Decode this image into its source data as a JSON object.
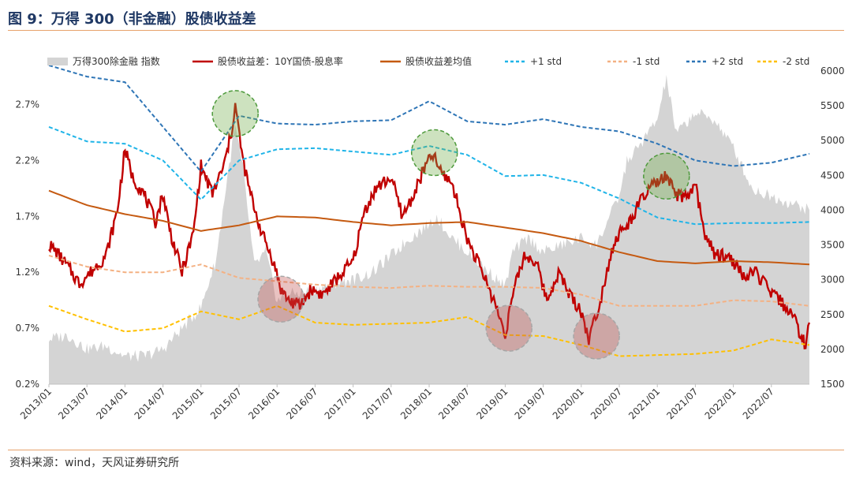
{
  "header": {
    "title": "图 9：万得 300（非金融）股债收益差"
  },
  "footer": {
    "source": "资料来源：wind，天风证券研究所"
  },
  "chart_data": {
    "type": "line",
    "x_ticks": [
      "2013/01",
      "2013/07",
      "2014/01",
      "2014/07",
      "2015/01",
      "2015/07",
      "2016/01",
      "2016/07",
      "2017/01",
      "2017/07",
      "2018/01",
      "2018/07",
      "2019/01",
      "2019/07",
      "2020/01",
      "2020/07",
      "2021/01",
      "2021/07",
      "2022/01",
      "2022/07"
    ],
    "y_left": {
      "ticks": [
        "0.2%",
        "0.7%",
        "1.2%",
        "1.7%",
        "2.2%",
        "2.7%"
      ],
      "range": [
        0.2,
        3.0
      ]
    },
    "y_right": {
      "ticks": [
        "1500",
        "2000",
        "2500",
        "3000",
        "3500",
        "4000",
        "4500",
        "5000",
        "5500",
        "6000"
      ],
      "range": [
        1500,
        6000
      ]
    },
    "legend": [
      {
        "name": "万得300除金融 指数",
        "color": "#d4d4d4",
        "style": "area"
      },
      {
        "name": "股债收益差：10Y国债-股息率",
        "color": "#c00000",
        "style": "solid"
      },
      {
        "name": "股债收益差均值",
        "color": "#c55a11",
        "style": "solid"
      },
      {
        "name": "+1 std",
        "color": "#1fb4e8",
        "style": "dashed"
      },
      {
        "name": "-1 std",
        "color": "#f4b183",
        "style": "dashed"
      },
      {
        "name": "+2 std",
        "color": "#2e75b6",
        "style": "dashed"
      },
      {
        "name": "-2 std",
        "color": "#ffc000",
        "style": "dashed"
      }
    ],
    "series": [
      {
        "name": "万得300除金融 指数",
        "axis": "right",
        "x": [
          2013.0,
          2013.25,
          2013.5,
          2013.75,
          2014.0,
          2014.25,
          2014.5,
          2014.75,
          2015.0,
          2015.2,
          2015.35,
          2015.45,
          2015.55,
          2015.7,
          2015.85,
          2016.0,
          2016.2,
          2016.5,
          2016.75,
          2017.0,
          2017.25,
          2017.5,
          2017.75,
          2018.0,
          2018.1,
          2018.3,
          2018.5,
          2018.75,
          2019.0,
          2019.1,
          2019.3,
          2019.5,
          2019.75,
          2020.0,
          2020.2,
          2020.5,
          2020.6,
          2020.75,
          2021.0,
          2021.12,
          2021.25,
          2021.5,
          2021.75,
          2022.0,
          2022.25,
          2022.5,
          2022.75,
          2023.0
        ],
        "values": [
          2150,
          2200,
          2000,
          2050,
          1900,
          1900,
          2000,
          2300,
          2600,
          3300,
          4500,
          5200,
          4600,
          3200,
          3400,
          2700,
          2800,
          2850,
          2950,
          3000,
          3100,
          3350,
          3600,
          3800,
          3900,
          3600,
          3400,
          3150,
          2900,
          3400,
          3600,
          3400,
          3500,
          3600,
          3500,
          4200,
          4700,
          4900,
          5300,
          5900,
          5100,
          5400,
          5300,
          4900,
          4300,
          4200,
          4100,
          4000
        ]
      },
      {
        "name": "股债收益差：10Y国债-股息率",
        "axis": "left",
        "x": [
          2013.0,
          2013.1,
          2013.25,
          2013.4,
          2013.55,
          2013.75,
          2013.9,
          2014.0,
          2014.1,
          2014.25,
          2014.4,
          2014.5,
          2014.6,
          2014.75,
          2014.9,
          2015.0,
          2015.15,
          2015.3,
          2015.4,
          2015.45,
          2015.55,
          2015.65,
          2015.8,
          2015.95,
          2016.05,
          2016.15,
          2016.3,
          2016.45,
          2016.6,
          2016.8,
          2017.0,
          2017.15,
          2017.3,
          2017.5,
          2017.65,
          2017.8,
          2017.95,
          2018.05,
          2018.15,
          2018.3,
          2018.5,
          2018.7,
          2018.85,
          2019.0,
          2019.1,
          2019.25,
          2019.4,
          2019.55,
          2019.7,
          2019.85,
          2020.0,
          2020.1,
          2020.25,
          2020.4,
          2020.5,
          2020.6,
          2020.75,
          2020.9,
          2021.0,
          2021.1,
          2021.25,
          2021.4,
          2021.5,
          2021.6,
          2021.75,
          2021.9,
          2022.0,
          2022.15,
          2022.3,
          2022.45,
          2022.6,
          2022.75,
          2022.85,
          2022.95,
          2023.0
        ],
        "values": [
          1.45,
          1.38,
          1.25,
          1.1,
          1.2,
          1.35,
          1.75,
          2.3,
          2.05,
          1.9,
          1.65,
          1.9,
          1.55,
          1.2,
          1.55,
          2.15,
          1.9,
          2.15,
          2.45,
          2.7,
          2.2,
          1.9,
          1.55,
          1.3,
          1.05,
          0.95,
          0.9,
          1.05,
          1.0,
          1.15,
          1.3,
          1.75,
          1.95,
          2.05,
          1.7,
          1.9,
          2.15,
          2.25,
          2.1,
          2.0,
          1.5,
          1.2,
          0.95,
          0.65,
          1.0,
          1.35,
          1.3,
          0.95,
          1.2,
          1.0,
          0.85,
          0.6,
          0.95,
          1.4,
          1.55,
          1.6,
          1.8,
          1.95,
          2.0,
          2.05,
          1.9,
          1.85,
          2.0,
          1.6,
          1.35,
          1.35,
          1.3,
          1.15,
          1.2,
          1.05,
          0.95,
          0.85,
          0.7,
          0.55,
          0.75
        ]
      },
      {
        "name": "股债收益差均值",
        "axis": "left",
        "x": [
          2013.0,
          2013.5,
          2014.0,
          2014.5,
          2015.0,
          2015.5,
          2016.0,
          2016.5,
          2017.0,
          2017.5,
          2018.0,
          2018.5,
          2019.0,
          2019.5,
          2020.0,
          2020.5,
          2021.0,
          2021.5,
          2022.0,
          2022.5,
          2023.0
        ],
        "values": [
          1.93,
          1.8,
          1.72,
          1.66,
          1.57,
          1.62,
          1.7,
          1.69,
          1.65,
          1.62,
          1.64,
          1.65,
          1.6,
          1.55,
          1.48,
          1.38,
          1.3,
          1.28,
          1.3,
          1.29,
          1.27
        ]
      },
      {
        "name": "+1 std",
        "axis": "left",
        "x": [
          2013.0,
          2013.5,
          2014.0,
          2014.5,
          2015.0,
          2015.5,
          2016.0,
          2016.5,
          2017.0,
          2017.5,
          2018.0,
          2018.5,
          2019.0,
          2019.5,
          2020.0,
          2020.5,
          2021.0,
          2021.5,
          2022.0,
          2022.5,
          2023.0
        ],
        "values": [
          2.5,
          2.37,
          2.35,
          2.2,
          1.85,
          2.2,
          2.3,
          2.31,
          2.28,
          2.25,
          2.33,
          2.25,
          2.06,
          2.07,
          2.0,
          1.86,
          1.69,
          1.63,
          1.64,
          1.64,
          1.65
        ]
      },
      {
        "name": "-1 std",
        "axis": "left",
        "x": [
          2013.0,
          2013.5,
          2014.0,
          2014.5,
          2015.0,
          2015.5,
          2016.0,
          2016.5,
          2017.0,
          2017.5,
          2018.0,
          2018.5,
          2019.0,
          2019.5,
          2020.0,
          2020.5,
          2021.0,
          2021.5,
          2022.0,
          2022.5,
          2023.0
        ],
        "values": [
          1.35,
          1.25,
          1.2,
          1.2,
          1.27,
          1.15,
          1.12,
          1.09,
          1.07,
          1.06,
          1.08,
          1.07,
          1.07,
          1.06,
          1.0,
          0.9,
          0.9,
          0.9,
          0.95,
          0.94,
          0.9
        ]
      },
      {
        "name": "+2 std",
        "axis": "left",
        "x": [
          2013.0,
          2013.5,
          2014.0,
          2014.5,
          2015.0,
          2015.5,
          2016.0,
          2016.5,
          2017.0,
          2017.5,
          2018.0,
          2018.5,
          2019.0,
          2019.5,
          2020.0,
          2020.5,
          2021.0,
          2021.5,
          2022.0,
          2022.5,
          2023.0
        ],
        "values": [
          3.05,
          2.95,
          2.9,
          2.5,
          2.1,
          2.6,
          2.53,
          2.52,
          2.55,
          2.56,
          2.73,
          2.55,
          2.52,
          2.57,
          2.5,
          2.46,
          2.35,
          2.2,
          2.15,
          2.18,
          2.26
        ]
      },
      {
        "name": "-2 std",
        "axis": "left",
        "x": [
          2013.0,
          2013.5,
          2014.0,
          2014.5,
          2015.0,
          2015.5,
          2016.0,
          2016.5,
          2017.0,
          2017.5,
          2018.0,
          2018.5,
          2019.0,
          2019.5,
          2020.0,
          2020.5,
          2021.0,
          2021.5,
          2022.0,
          2022.5,
          2023.0
        ],
        "values": [
          0.9,
          0.78,
          0.67,
          0.7,
          0.85,
          0.78,
          0.9,
          0.75,
          0.73,
          0.74,
          0.75,
          0.8,
          0.64,
          0.63,
          0.55,
          0.45,
          0.46,
          0.47,
          0.5,
          0.6,
          0.55
        ]
      }
    ],
    "grid": false,
    "legend_position": "top"
  }
}
